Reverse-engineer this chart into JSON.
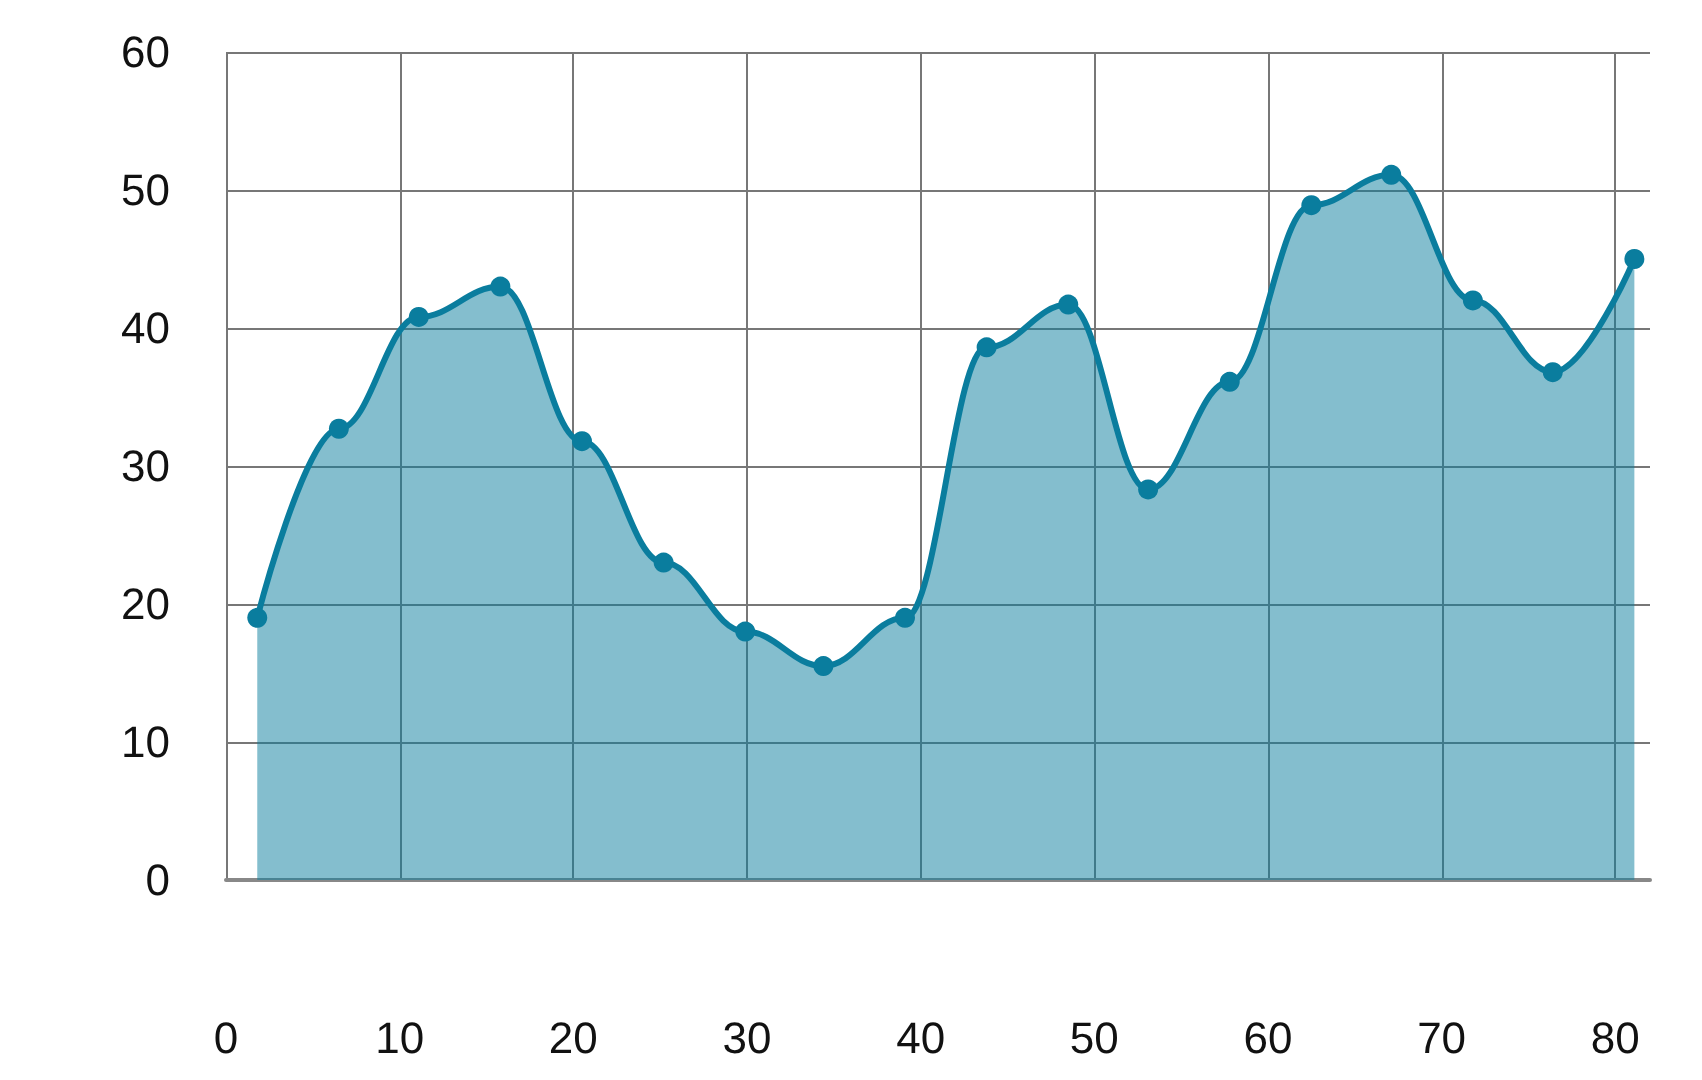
{
  "chart_data": {
    "type": "area",
    "x": [
      1.8,
      6.5,
      11.1,
      15.8,
      20.5,
      25.2,
      29.9,
      34.4,
      39.1,
      43.8,
      48.5,
      53.1,
      57.8,
      62.5,
      67.1,
      71.8,
      76.4,
      81.1
    ],
    "series": [
      {
        "color": "#0a7d9e",
        "values": [
          19,
          32.7,
          40.8,
          43,
          31.8,
          23,
          18,
          15.5,
          19,
          38.6,
          41.7,
          28.3,
          36.1,
          48.9,
          51.1,
          42,
          36.8,
          45
        ]
      }
    ],
    "xlim": [
      0,
      82
    ],
    "xticks": [
      0,
      10,
      20,
      30,
      40,
      50,
      60,
      70,
      80
    ],
    "ylim": [
      0,
      60
    ],
    "yticks": [
      0,
      10,
      20,
      30,
      40,
      50,
      60
    ],
    "grid": true,
    "marker": "circle",
    "line_style": "solid"
  }
}
